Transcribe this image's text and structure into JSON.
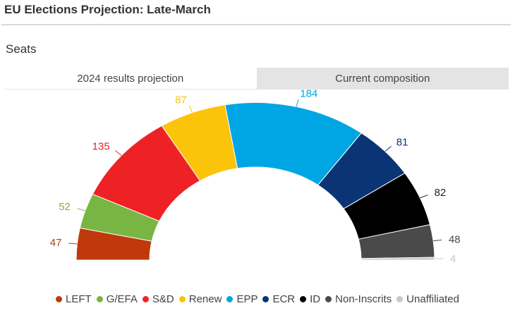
{
  "header": {
    "title": "EU Elections Projection: Late-March"
  },
  "section": {
    "title": "Seats"
  },
  "tabs": [
    {
      "label": "2024 results projection",
      "active": true
    },
    {
      "label": "Current composition",
      "active": false
    }
  ],
  "chart_data": {
    "type": "pie",
    "variant": "semicircle-donut",
    "categories": [
      "LEFT",
      "G/EFA",
      "S&D",
      "Renew",
      "EPP",
      "ECR",
      "ID",
      "Non-Inscrits",
      "Unaffiliated"
    ],
    "values": [
      47,
      52,
      135,
      87,
      184,
      81,
      82,
      48,
      4
    ],
    "colors": [
      "#c0390b",
      "#78b542",
      "#ee2224",
      "#fcc30b",
      "#00a6e4",
      "#0b3475",
      "#000000",
      "#4a4a4a",
      "#c8c8c8"
    ],
    "legend": "bottom",
    "data_labels": true
  }
}
